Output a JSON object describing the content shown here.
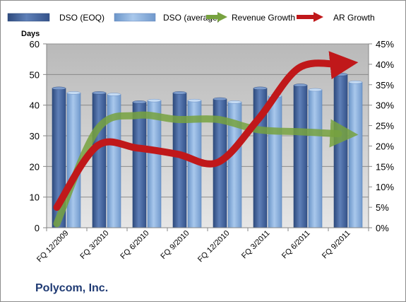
{
  "company": "Polycom, Inc.",
  "chart_data": {
    "type": "bar",
    "categories": [
      "FQ 12/2009",
      "FQ 3/2010",
      "FQ 6/2010",
      "FQ 9/2010",
      "FQ 12/2010",
      "FQ 3/2011",
      "FQ 6/2011",
      "FQ 9/2011"
    ],
    "ylabel": "Days",
    "ylim": [
      0,
      60
    ],
    "y_ticks": [
      0,
      10,
      20,
      30,
      40,
      50,
      60
    ],
    "y2lim": [
      0,
      45
    ],
    "y2_ticks": [
      "0%",
      "5%",
      "10%",
      "15%",
      "20%",
      "25%",
      "30%",
      "35%",
      "40%",
      "45%"
    ],
    "grid": true,
    "legend_position": "top",
    "series": [
      {
        "name": "DSO (EOQ)",
        "type": "bar",
        "axis": "left",
        "color": "#4f6fa8",
        "values": [
          45.5,
          44,
          41,
          44,
          42,
          45.5,
          46.5,
          50
        ]
      },
      {
        "name": "DSO (average)",
        "type": "bar",
        "axis": "left",
        "color": "#8eb4e3",
        "values": [
          44,
          43.5,
          41.5,
          41.5,
          41,
          43,
          45,
          47.5
        ]
      },
      {
        "name": "Revenue Growth",
        "type": "line",
        "axis": "right",
        "unit": "%",
        "color": "#77a23f",
        "values": [
          1,
          24,
          27.5,
          26.5,
          26.5,
          24,
          23.5,
          23
        ]
      },
      {
        "name": "AR Growth",
        "type": "line",
        "axis": "right",
        "unit": "%",
        "color": "#c0181a",
        "values": [
          5,
          20,
          19.5,
          18,
          16,
          26.5,
          39,
          40
        ]
      }
    ]
  }
}
